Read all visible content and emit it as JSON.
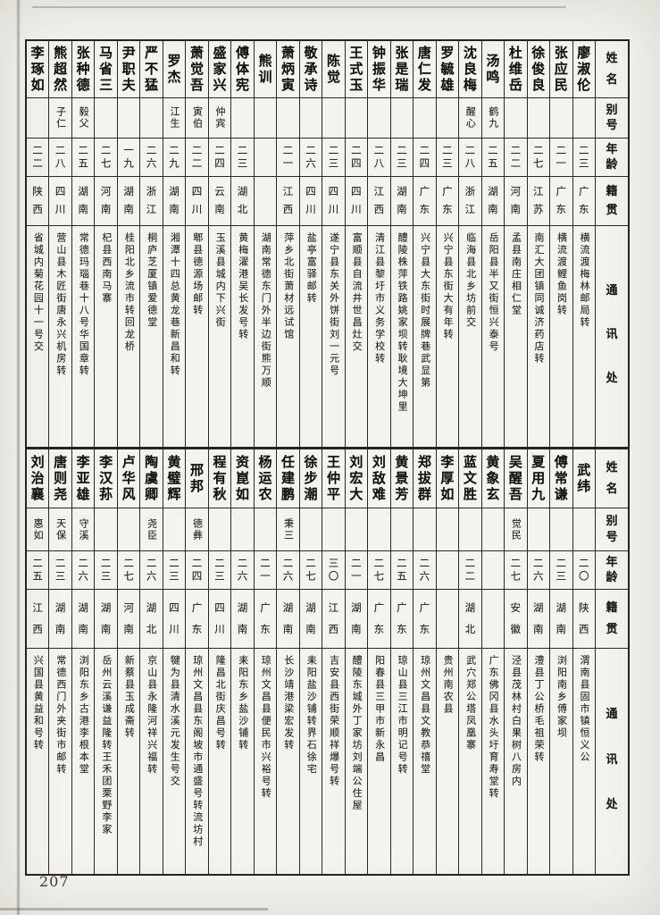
{
  "page": {
    "number": "207"
  },
  "headers": {
    "name": "姓名",
    "byname": "别号",
    "age": "年龄",
    "origin": "籍贯",
    "address": "通讯处"
  },
  "top_table": {
    "people": [
      {
        "name": "廖淑伦",
        "byname": "",
        "age": "二三",
        "origin": "广东",
        "address": "横流渡梅林邮局转"
      },
      {
        "name": "张应民",
        "byname": "",
        "age": "二一",
        "origin": "广东",
        "address": "横流渡鲤鱼岗转"
      },
      {
        "name": "徐俊良",
        "byname": "",
        "age": "二七",
        "origin": "江苏",
        "address": "南汇大团镇同诚济药店转"
      },
      {
        "name": "杜维岳",
        "byname": "",
        "age": "二二",
        "origin": "河南",
        "address": "孟县南庄相仁堂"
      },
      {
        "name": "汤鸣",
        "byname": "鹤九",
        "age": "二五",
        "origin": "湖南",
        "address": "岳阳县半又街恒兴泰号"
      },
      {
        "name": "沈良梅",
        "byname": "醒心",
        "age": "二八",
        "origin": "浙江",
        "address": "临海县北乡坊前交"
      },
      {
        "name": "罗毓雄",
        "byname": "",
        "age": "二三",
        "origin": "广东",
        "address": "兴宁县东街大有年转"
      },
      {
        "name": "唐仁发",
        "byname": "",
        "age": "二四",
        "origin": "广东",
        "address": "兴宁县大东街时展牌巷武显第"
      },
      {
        "name": "张是瑞",
        "byname": "",
        "age": "二三",
        "origin": "湖南",
        "address": "醴陵株萍铁路姚家坝转耿境大坤里"
      },
      {
        "name": "钟振华",
        "byname": "",
        "age": "二八",
        "origin": "江西",
        "address": "清江县黎圩市义务学校转"
      },
      {
        "name": "王式玉",
        "byname": "",
        "age": "二四",
        "origin": "四川",
        "address": "富顺县自流井世昌灶交"
      },
      {
        "name": "陈觉",
        "byname": "",
        "age": "二三",
        "origin": "四川",
        "address": "遂宁县东关外饼街刘一元号"
      },
      {
        "name": "敬承诗",
        "byname": "",
        "age": "二六",
        "origin": "四川",
        "address": "盐亭富驿邮转"
      },
      {
        "name": "萧炳寅",
        "byname": "",
        "age": "二一",
        "origin": "江西",
        "address": "萍乡北街萧材远试馆"
      },
      {
        "name": "熊训",
        "byname": "",
        "age": "",
        "origin": "",
        "address": "湖南常德东门外半边街熊万顺"
      },
      {
        "name": "傅体宪",
        "byname": "",
        "age": "二三",
        "origin": "湖北",
        "address": "黄梅濯港吴长发号转"
      },
      {
        "name": "盛家兴",
        "byname": "仲宾",
        "age": "二四",
        "origin": "云南",
        "address": "玉溪县城内下兴街"
      },
      {
        "name": "萧觉吾",
        "byname": "寅伯",
        "age": "二二",
        "origin": "四川",
        "address": "郫县德源场邮转"
      },
      {
        "name": "罗杰",
        "byname": "江生",
        "age": "二九",
        "origin": "湖南",
        "address": "湘潭十四总黄龙巷新昌和转"
      },
      {
        "name": "严不猛",
        "byname": "",
        "age": "二六",
        "origin": "浙江",
        "address": "桐庐芝厦镇爱德堂"
      },
      {
        "name": "尹职夫",
        "byname": "",
        "age": "一九",
        "origin": "湖南",
        "address": "桂阳北乡流市转回龙桥"
      },
      {
        "name": "马省三",
        "byname": "",
        "age": "二七",
        "origin": "河南",
        "address": "杞县西南马寨"
      },
      {
        "name": "张种德",
        "byname": "毅父",
        "age": "二五",
        "origin": "湖南",
        "address": "常德玛瑙巷十八号华国章转"
      },
      {
        "name": "熊超然",
        "byname": "子仁",
        "age": "二八",
        "origin": "四川",
        "address": "营山县木匠街唐永兴机房转"
      },
      {
        "name": "李琢如",
        "byname": "",
        "age": "二二",
        "origin": "陕西",
        "address": "省城内菊花园十一号交"
      }
    ]
  },
  "bottom_table": {
    "people": [
      {
        "name": "武纬",
        "byname": "",
        "age": "二〇",
        "origin": "陕西",
        "address": "渭南县固市镇恒义公"
      },
      {
        "name": "傅常谦",
        "byname": "",
        "age": "二三",
        "origin": "湖南",
        "address": "浏阳南乡傅家坝"
      },
      {
        "name": "夏用九",
        "byname": "",
        "age": "二六",
        "origin": "湖南",
        "address": "澧县丁公桥毛祖荣转"
      },
      {
        "name": "吴醒吾",
        "byname": "觉民",
        "age": "二七",
        "origin": "安徽",
        "address": "泾县茂林村白果树八房内"
      },
      {
        "name": "黄象玄",
        "byname": "",
        "age": "",
        "origin": "",
        "address": "广东佛冈县水头圩育寿堂转"
      },
      {
        "name": "蓝文胜",
        "byname": "",
        "age": "二二",
        "origin": "湖北",
        "address": "武穴郑公塔凤凰寨"
      },
      {
        "name": "李厚如",
        "byname": "",
        "age": "",
        "origin": "",
        "address": "贵州南农县"
      },
      {
        "name": "郑拔群",
        "byname": "",
        "age": "二六",
        "origin": "广东",
        "address": "琼州文昌县文教恭禧堂"
      },
      {
        "name": "黄景芳",
        "byname": "",
        "age": "二五",
        "origin": "广东",
        "address": "琼山县三江市明记号转"
      },
      {
        "name": "刘敌难",
        "byname": "",
        "age": "二七",
        "origin": "广东",
        "address": "阳春县三甲市新永昌"
      },
      {
        "name": "刘宏大",
        "byname": "",
        "age": "二一",
        "origin": "湖南",
        "address": "醴陵东城外丁家坊刘端公住屋"
      },
      {
        "name": "王仲平",
        "byname": "",
        "age": "三〇",
        "origin": "江西",
        "address": "吉安县西街荣顺祥爆号转"
      },
      {
        "name": "徐步潮",
        "byname": "",
        "age": "二七",
        "origin": "湖南",
        "address": "耒阳盐沙铺转界石徐宅"
      },
      {
        "name": "任建鹏",
        "byname": "秉三",
        "age": "二六",
        "origin": "湖南",
        "address": "长沙靖港梁宏发转"
      },
      {
        "name": "杨运农",
        "byname": "",
        "age": "二一",
        "origin": "广东",
        "address": "琼州文昌县便民市兴裕号转"
      },
      {
        "name": "资崑如",
        "byname": "",
        "age": "二六",
        "origin": "湖南",
        "address": "耒阳东乡盐沙铺转"
      },
      {
        "name": "程有秋",
        "byname": "",
        "age": "二三",
        "origin": "四川",
        "address": "隆昌北街庆昌号转"
      },
      {
        "name": "邢邦",
        "byname": "德彝",
        "age": "二四",
        "origin": "广东",
        "address": "琼州文昌县东阁坡市通盛号转流坊村"
      },
      {
        "name": "黄璧辉",
        "byname": "",
        "age": "二三",
        "origin": "四川",
        "address": "犍为县清水溪元发生号交"
      },
      {
        "name": "陶虞卿",
        "byname": "尧臣",
        "age": "二六",
        "origin": "湖北",
        "address": "京山县永隆河祥兴福转"
      },
      {
        "name": "卢华风",
        "byname": "",
        "age": "二七",
        "origin": "河南",
        "address": "新蔡县玉成斋转"
      },
      {
        "name": "李汉荪",
        "byname": "",
        "age": "二三",
        "origin": "湖南",
        "address": "岳州云溪谦益隆转王禾团栗野李家"
      },
      {
        "name": "李亚雄",
        "byname": "守溪",
        "age": "二六",
        "origin": "湖南",
        "address": "浏阳东乡古港李根本堂"
      },
      {
        "name": "唐则尧",
        "byname": "天保",
        "age": "二三",
        "origin": "湖南",
        "address": "常德西门外夹街市邮转"
      },
      {
        "name": "刘治襄",
        "byname": "惠如",
        "age": "二五",
        "origin": "江西",
        "address": "兴国县黄益和号转"
      }
    ]
  }
}
